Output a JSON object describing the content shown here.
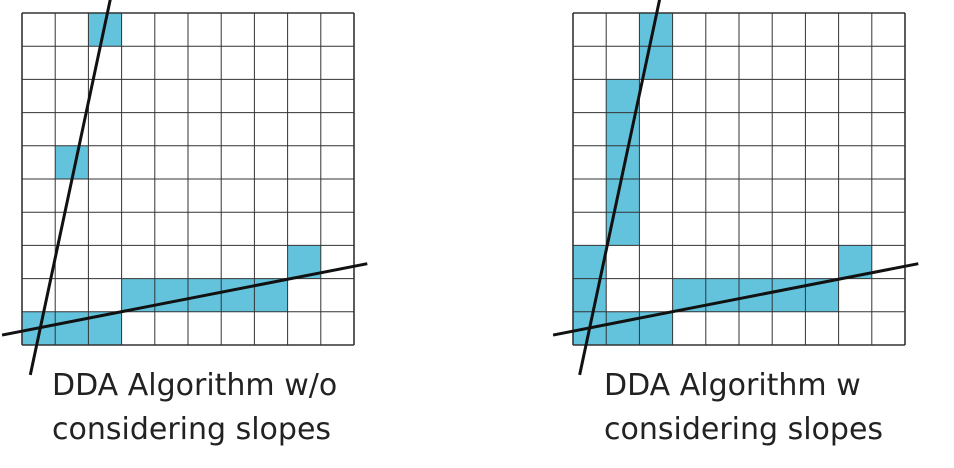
{
  "colors": {
    "fill": "#63c3dc",
    "grid": "#333333",
    "line": "#111111",
    "caption": "#222222"
  },
  "panels": [
    {
      "id": "left",
      "caption_lines": [
        "DDA Algorithm w/o",
        "considering slopes"
      ],
      "grid_cols": 10,
      "grid_rows": 10,
      "filled_cells": [
        [
          2,
          0
        ],
        [
          1,
          4
        ],
        [
          8,
          7
        ],
        [
          3,
          8
        ],
        [
          4,
          8
        ],
        [
          5,
          8
        ],
        [
          6,
          8
        ],
        [
          7,
          8
        ],
        [
          0,
          9
        ],
        [
          1,
          9
        ],
        [
          2,
          9
        ]
      ],
      "lines": [
        {
          "name": "steep-line",
          "from": [
            0.25,
            10.9
          ],
          "to": [
            2.7,
            -0.6
          ]
        },
        {
          "name": "shallow-line",
          "from": [
            -0.6,
            9.7
          ],
          "to": [
            10.4,
            7.55
          ]
        }
      ]
    },
    {
      "id": "right",
      "caption_lines": [
        "DDA Algorithm w",
        "considering slopes"
      ],
      "grid_cols": 10,
      "grid_rows": 10,
      "filled_cells": [
        [
          2,
          0
        ],
        [
          2,
          1
        ],
        [
          1,
          2
        ],
        [
          1,
          3
        ],
        [
          1,
          4
        ],
        [
          1,
          5
        ],
        [
          1,
          6
        ],
        [
          0,
          7
        ],
        [
          8,
          7
        ],
        [
          0,
          8
        ],
        [
          3,
          8
        ],
        [
          4,
          8
        ],
        [
          5,
          8
        ],
        [
          6,
          8
        ],
        [
          7,
          8
        ],
        [
          0,
          9
        ],
        [
          1,
          9
        ],
        [
          2,
          9
        ]
      ],
      "lines": [
        {
          "name": "steep-line",
          "from": [
            0.2,
            10.9
          ],
          "to": [
            2.65,
            -0.6
          ]
        },
        {
          "name": "shallow-line",
          "from": [
            -0.6,
            9.7
          ],
          "to": [
            10.4,
            7.55
          ]
        }
      ]
    }
  ]
}
